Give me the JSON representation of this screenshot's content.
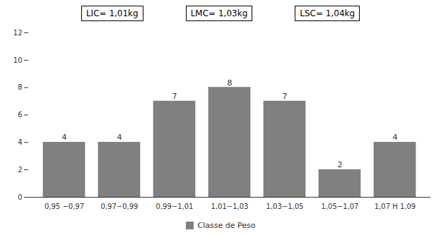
{
  "chart_data": {
    "type": "bar",
    "categories": [
      "0,95 −0,97",
      "0,97−0,99",
      "0,99−1,01",
      "1,01−1,03",
      "1,03−1,05",
      "1,05−1,07",
      "1,07 H 1,09"
    ],
    "series": [
      {
        "name": "Classe de Peso",
        "color": "#808080",
        "values": [
          4,
          4,
          7,
          8,
          7,
          2,
          4
        ]
      }
    ],
    "ylim": [
      0,
      12
    ],
    "yticks": [
      0,
      2,
      4,
      6,
      8,
      10,
      12
    ],
    "grid": false,
    "legend": "bottom",
    "data_labels": true,
    "annotations": [
      "LIC= 1,01kg",
      "LMC= 1,03kg",
      "LSC= 1,04kg"
    ]
  }
}
